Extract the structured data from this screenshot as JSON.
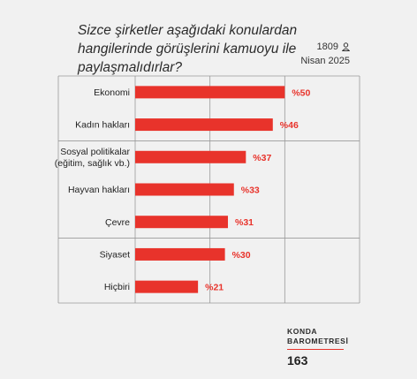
{
  "question": "Sizce şirketler aşağıdaki konulardan hangilerinde görüşlerini kamuoyu ile paylaşmalıdırlar?",
  "meta": {
    "sample": "1809",
    "sample_icon": "person-icon",
    "date": "Nisan 2025"
  },
  "brand": {
    "line1": "KONDA",
    "line2": "BAROMETRESİ",
    "issue": "163"
  },
  "colors": {
    "bar": "#e8332b",
    "label": "#e8332b",
    "grid": "#9a9a9a",
    "background": "#f1f1f1"
  },
  "chart_data": {
    "type": "bar",
    "orientation": "horizontal",
    "categories": [
      "Ekonomi",
      "Kadın hakları",
      "Sosyal politikalar (eğitim, sağlık vb.)",
      "Hayvan hakları",
      "Çevre",
      "Siyaset",
      "Hiçbiri"
    ],
    "category_lines": [
      [
        "Ekonomi"
      ],
      [
        "Kadın hakları"
      ],
      [
        "Sosyal politikalar",
        "(eğitim, sağlık vb.)"
      ],
      [
        "Hayvan hakları"
      ],
      [
        "Çevre"
      ],
      [
        "Siyaset"
      ],
      [
        "Hiçbiri"
      ]
    ],
    "values": [
      50,
      46,
      37,
      33,
      31,
      30,
      21
    ],
    "data_labels": [
      "%50",
      "%46",
      "%37",
      "%33",
      "%31",
      "%30",
      "%21"
    ],
    "xlim": [
      0,
      75
    ],
    "grid": true,
    "vertical_gridlines_at": [
      0,
      25,
      50,
      75
    ],
    "group_separators_after": [
      1,
      4
    ],
    "title": "",
    "xlabel": "",
    "ylabel": ""
  }
}
